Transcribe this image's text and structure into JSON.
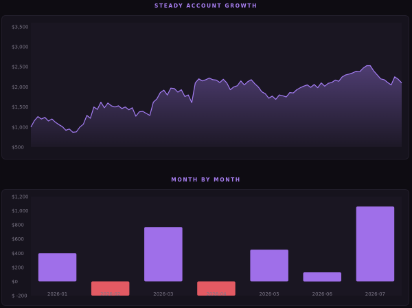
{
  "colors": {
    "background": "#0e0c12",
    "panel": "#16131d",
    "plot": "#1a1622",
    "title": "#a77ef0",
    "line": "#a57ef5",
    "positive_bar": "#9f6fe9",
    "negative_bar": "#e35a63",
    "tick_text": "#7c7787"
  },
  "chart_data": [
    {
      "type": "area",
      "title": "STEADY ACCOUNT GROWTH",
      "xlabel": "",
      "ylabel": "",
      "ylim": [
        500,
        3600
      ],
      "yticks": [
        500,
        1000,
        1500,
        2000,
        2500,
        3000,
        3500
      ],
      "ytick_labels": [
        "$500",
        "$1,000",
        "$1,500",
        "$2,000",
        "$2,500",
        "$3,000",
        "$3,500"
      ],
      "grid": false,
      "legend": "none",
      "x": [
        0,
        2,
        4,
        6,
        8,
        10,
        12,
        14,
        16,
        18,
        20,
        22,
        24,
        26,
        28,
        30,
        32,
        34,
        36,
        38,
        40,
        42,
        44,
        46,
        48,
        50,
        52,
        54,
        56,
        58,
        60,
        62,
        64,
        66,
        68,
        70,
        72,
        74,
        76,
        78,
        80,
        82,
        84,
        86,
        88,
        90,
        92,
        94,
        96,
        98,
        100,
        102,
        104,
        106,
        108,
        110,
        112,
        114,
        116,
        118,
        120,
        122,
        124,
        126,
        128,
        130,
        132,
        134,
        136,
        138,
        140,
        142,
        144,
        146,
        148,
        150,
        152,
        154,
        156,
        158,
        160,
        162,
        164,
        166,
        168,
        170,
        172,
        174,
        176,
        178,
        180,
        182,
        184,
        186,
        188,
        190,
        192,
        194,
        196,
        198,
        200,
        202,
        204,
        206,
        208,
        210,
        212
      ],
      "values": [
        1000,
        1160,
        1260,
        1200,
        1240,
        1150,
        1200,
        1120,
        1060,
        1010,
        920,
        950,
        870,
        880,
        1000,
        1070,
        1290,
        1220,
        1500,
        1440,
        1620,
        1480,
        1600,
        1530,
        1500,
        1530,
        1460,
        1500,
        1430,
        1480,
        1270,
        1380,
        1390,
        1340,
        1290,
        1620,
        1700,
        1860,
        1920,
        1800,
        1970,
        1960,
        1870,
        1930,
        1760,
        1800,
        1610,
        2100,
        2200,
        2150,
        2180,
        2220,
        2180,
        2170,
        2110,
        2190,
        2100,
        1930,
        2000,
        2030,
        2150,
        2050,
        2130,
        2180,
        2080,
        2000,
        1880,
        1830,
        1720,
        1770,
        1690,
        1800,
        1780,
        1750,
        1860,
        1850,
        1930,
        1980,
        2020,
        2050,
        1990,
        2060,
        1980,
        2100,
        2020,
        2090,
        2110,
        2170,
        2140,
        2250,
        2300,
        2320,
        2350,
        2390,
        2380,
        2470,
        2530,
        2530,
        2400,
        2300,
        2200,
        2180,
        2110,
        2050,
        2250,
        2190,
        2100
      ]
    },
    {
      "type": "bar",
      "title": "MONTH BY MONTH",
      "xlabel": "",
      "ylabel": "",
      "categories": [
        "2026-01",
        "2026-02",
        "2026-03",
        "2026-04",
        "2026-05",
        "2026-06",
        "2026-07"
      ],
      "values": [
        400,
        -200,
        770,
        -200,
        450,
        130,
        1060
      ],
      "ylim": [
        -200,
        1200
      ],
      "yticks": [
        -200,
        0,
        200,
        400,
        600,
        800,
        1000,
        1200
      ],
      "ytick_labels": [
        "$ -200",
        "$0",
        "$200",
        "$400",
        "$600",
        "$800",
        "$1,000",
        "$1,200"
      ],
      "grid": false,
      "legend": "none"
    }
  ]
}
